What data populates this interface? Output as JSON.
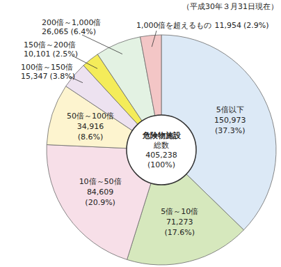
{
  "chart_data": {
    "type": "pie",
    "subtitle": "（平成30年３月31日現在）",
    "center_label": [
      "危険物施設",
      "総数",
      "405,238",
      "(100%)"
    ],
    "categories": [
      "5倍以下",
      "5倍～10倍",
      "10倍～50倍",
      "50倍～100倍",
      "100倍～150倍",
      "150倍～200倍",
      "200倍～1,000倍",
      "1,000倍を超えるもの"
    ],
    "values": [
      150973,
      71273,
      84609,
      34916,
      15347,
      10101,
      26065,
      11954
    ],
    "value_labels": [
      "150,973",
      "71,273",
      "84,609",
      "34,916",
      "15,347",
      "10,101",
      "26,065",
      "11,954"
    ],
    "percent_labels": [
      "(37.3%)",
      "(17.6%)",
      "(20.9%)",
      "(8.6%)",
      "(3.8%)",
      "(2.5%)",
      "(6.4%)",
      "(2.9%)"
    ],
    "colors": [
      "#dce9f6",
      "#d6e8bd",
      "#f7dfe8",
      "#fdf4cf",
      "#ede2f0",
      "#f4ec5a",
      "#e3f2e3",
      "#f3c6c6"
    ],
    "data_labels": true
  }
}
